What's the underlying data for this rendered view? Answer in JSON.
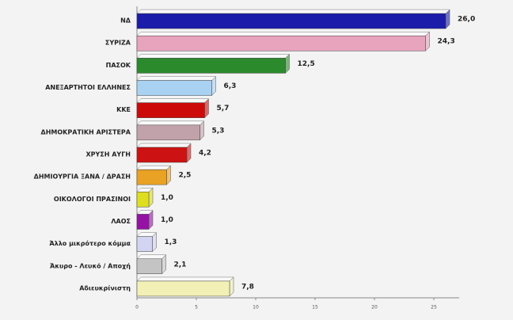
{
  "chart_data": {
    "type": "bar",
    "categories": [
      "ΝΔ",
      "ΣΥΡΙΖΑ",
      "ΠΑΣΟΚ",
      "ΑΝΕΞΑΡΤΗΤΟΙ ΕΛΛΗΝΕΣ",
      "ΚΚΕ",
      "ΔΗΜΟΚΡΑΤΙΚΗ ΑΡΙΣΤΕΡΑ",
      "ΧΡΥΣΗ ΑΥΓΗ",
      "ΔΗΜΙΟΥΡΓΙΑ ΞΑΝΑ / ΔΡΑΣΗ",
      "ΟΙΚΟΛΟΓΟΙ ΠΡΑΣΙΝΟΙ",
      "ΛΑΟΣ",
      "Άλλο μικρότερο κόμμα",
      "Άκυρο - Λευκό / Αποχή",
      "Αδιευκρίνιστη"
    ],
    "values": [
      26.0,
      24.3,
      12.5,
      6.3,
      5.7,
      5.3,
      4.2,
      2.5,
      1.0,
      1.0,
      1.3,
      2.1,
      7.8
    ],
    "value_labels": [
      "26,0",
      "24,3",
      "12,5",
      "6,3",
      "5,7",
      "5,3",
      "4,2",
      "2,5",
      "1,0",
      "1,0",
      "1,3",
      "2,1",
      "7,8"
    ],
    "colors": [
      "#1c1caa",
      "#e8a3bd",
      "#2b8a2b",
      "#a9d2f2",
      "#cc0a0a",
      "#c2a2aa",
      "#cc1212",
      "#e9a224",
      "#dede1e",
      "#9512a5",
      "#d3d3f2",
      "#c4c4c4",
      "#f2f0b4"
    ],
    "xlim": [
      0,
      27
    ],
    "xticks": [
      0,
      5,
      10,
      15,
      20,
      25
    ]
  }
}
